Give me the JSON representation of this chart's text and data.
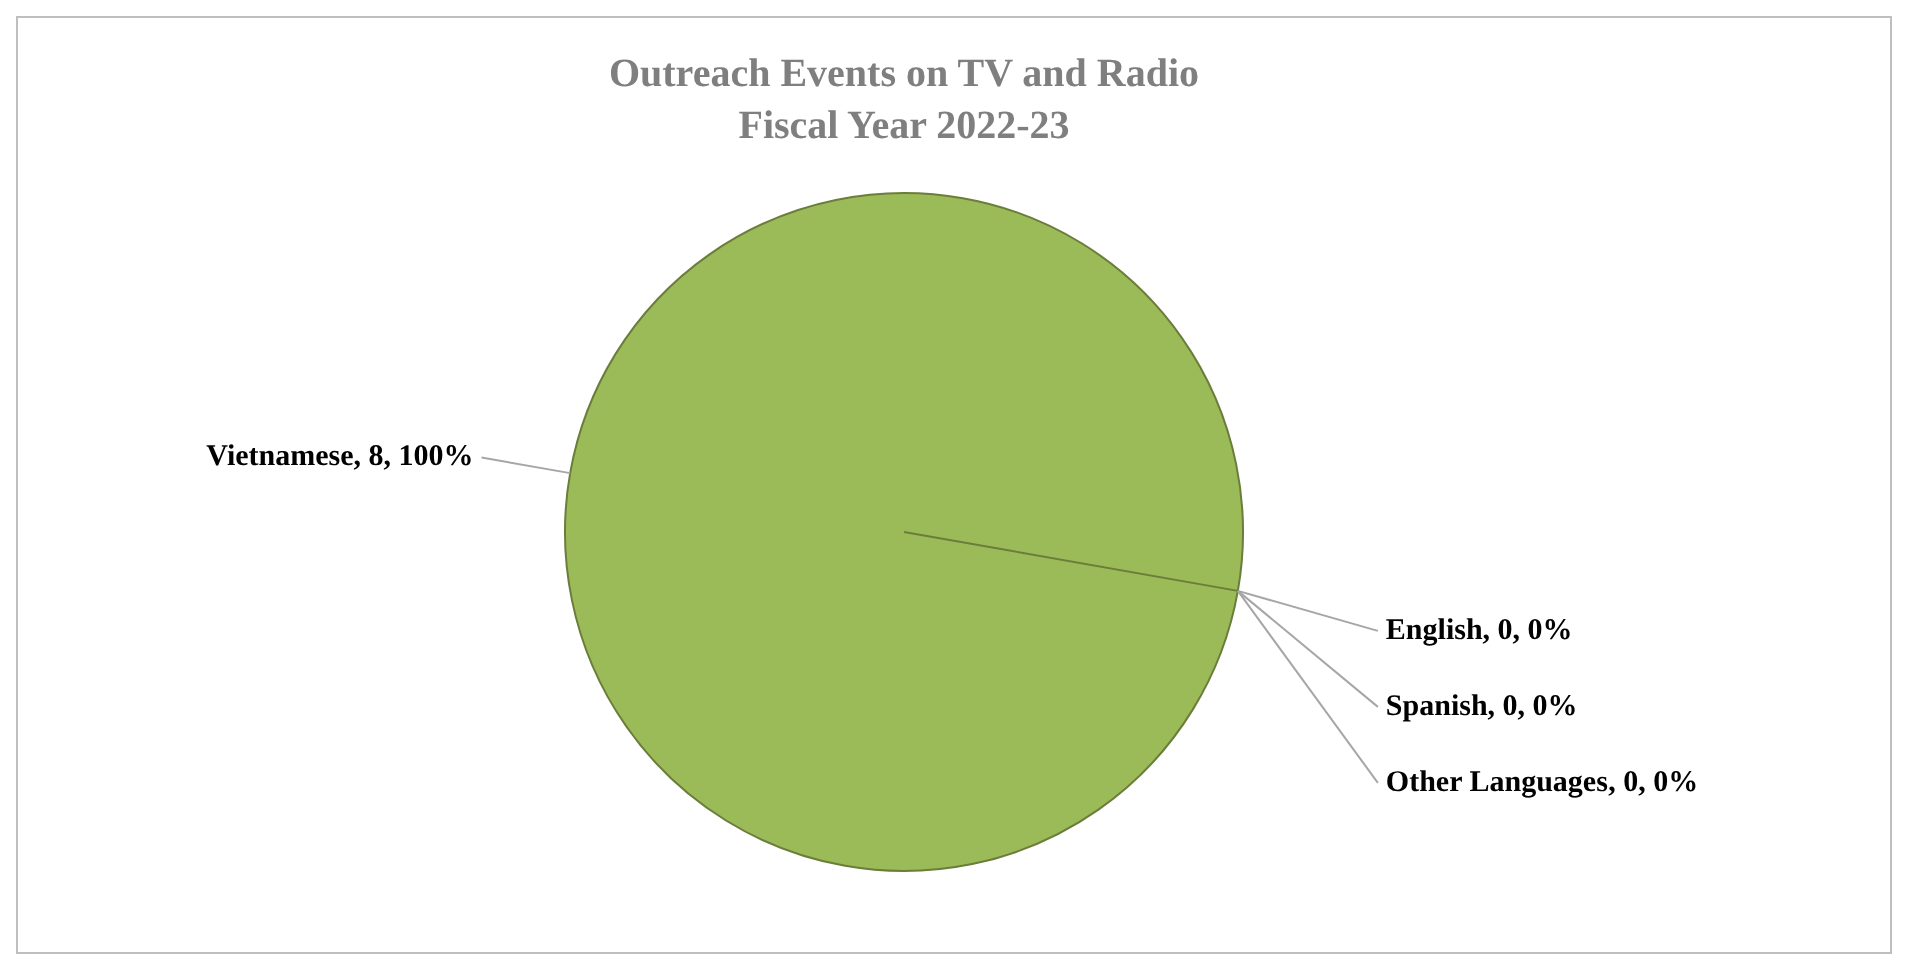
{
  "chart_data": {
    "type": "pie",
    "title": "Outreach Events on TV and Radio",
    "subtitle": "Fiscal Year 2022-23",
    "categories": [
      "Vietnamese",
      "English",
      "Spanish",
      "Other Languages"
    ],
    "values": [
      8,
      0,
      0,
      0
    ],
    "colors": [
      "#9bbb59",
      "#4f81bd",
      "#c0504d",
      "#8064a2"
    ],
    "value_labels": [
      ", 8, 100%",
      ", 0, 0%",
      ", 0, 0%",
      ", 0, 0%"
    ]
  }
}
